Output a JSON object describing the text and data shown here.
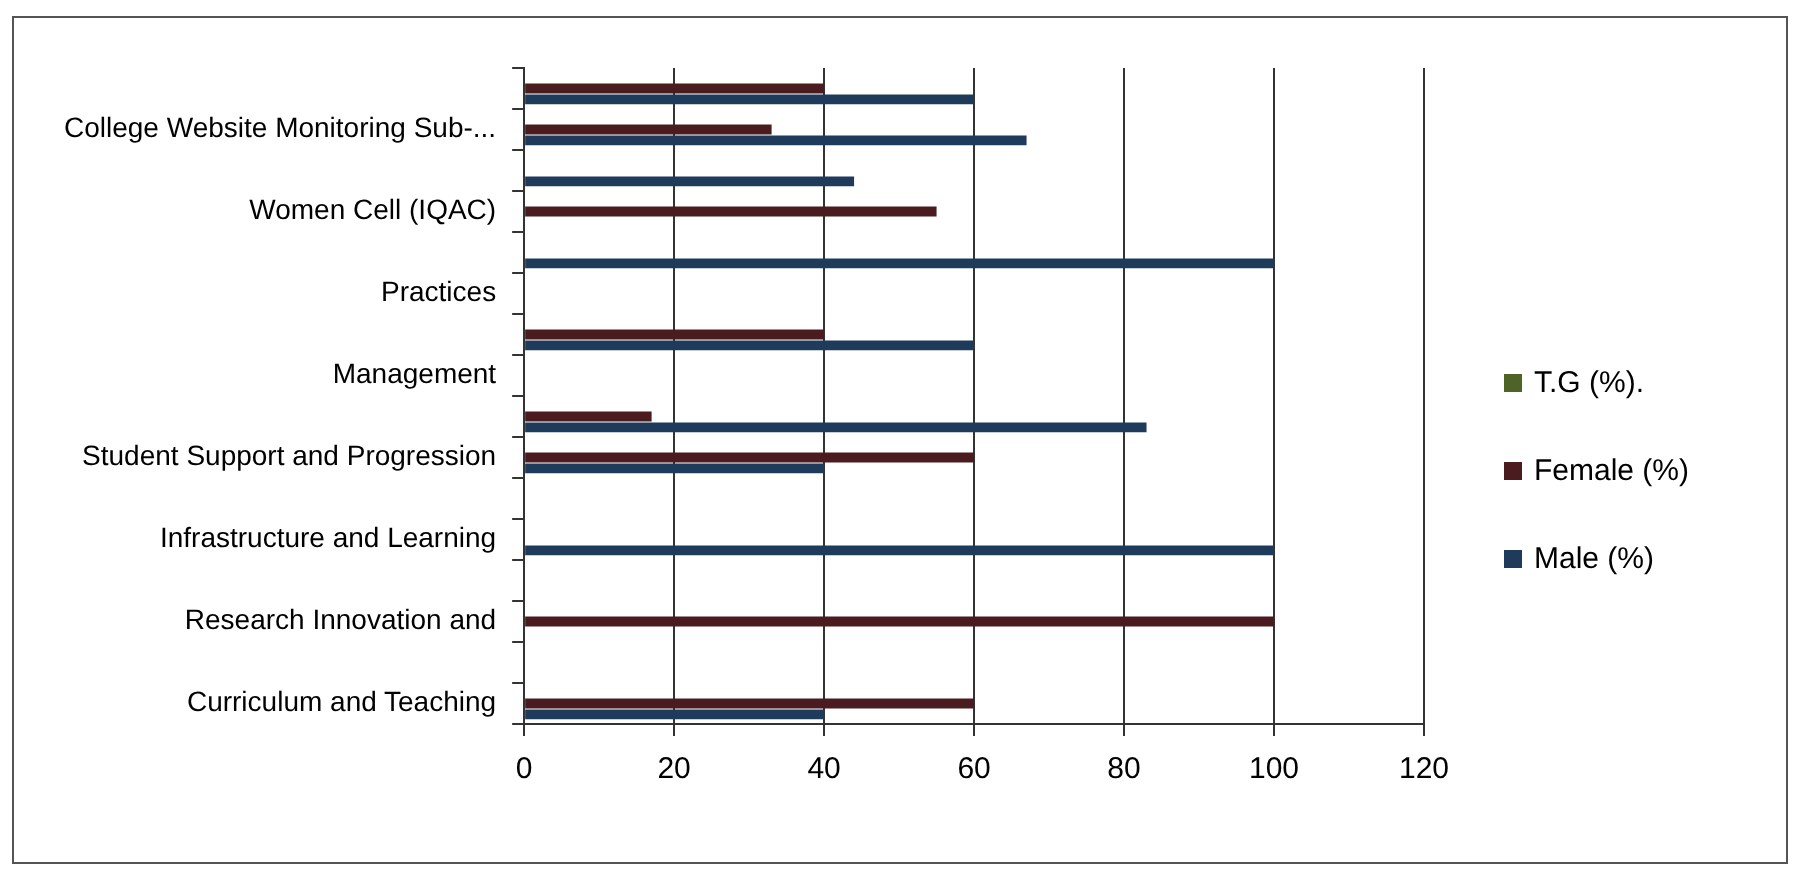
{
  "chart_data": {
    "type": "bar",
    "orientation": "horizontal",
    "categories": [
      null,
      "College Website Monitoring Sub-...",
      null,
      "Women Cell (IQAC)",
      null,
      "Practices",
      null,
      "Management",
      null,
      "Student Support and Progression",
      null,
      "Infrastructure and Learning",
      null,
      "Research Innovation and",
      null,
      "Curriculum and Teaching"
    ],
    "series": [
      {
        "name": "T.G (%).",
        "color": "#4f6228",
        "values": [
          0,
          0,
          0,
          0,
          0,
          0,
          0,
          0,
          0,
          0,
          0,
          0,
          0,
          0,
          0,
          0
        ]
      },
      {
        "name": "Female (%)",
        "color": "#4a1c1f",
        "values": [
          40,
          33,
          0,
          55,
          0,
          0,
          40,
          0,
          17,
          60,
          0,
          0,
          0,
          100,
          0,
          60
        ]
      },
      {
        "name": "Male (%)",
        "color": "#1f3b5c",
        "values": [
          60,
          67,
          44,
          0,
          100,
          0,
          60,
          0,
          83,
          40,
          0,
          100,
          0,
          0,
          0,
          40
        ]
      }
    ],
    "xlim": [
      0,
      120
    ],
    "xticks": [
      0,
      20,
      40,
      60,
      80,
      100,
      120
    ],
    "grid": "x",
    "legend": "right"
  }
}
